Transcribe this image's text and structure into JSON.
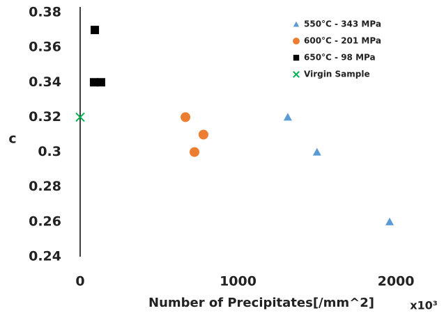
{
  "chart_data": {
    "type": "scatter",
    "xlabel": "Number of Precipitates[/mm^2]",
    "ylabel": "c",
    "annotation": "x10³",
    "xlim": [
      0,
      2300
    ],
    "xticks": [
      0,
      1000,
      2000
    ],
    "ylim": [
      0.24,
      0.38
    ],
    "yticks": [
      0.38,
      0.36,
      0.34,
      0.32,
      0.3,
      0.28,
      0.26,
      0.24
    ],
    "legend": "top-right",
    "series": [
      {
        "name": "550°C - 343 MPa",
        "color": "#5b9bd5",
        "marker": "triangle",
        "x": [
          1315,
          1500,
          1960
        ],
        "values": [
          0.32,
          0.3,
          0.26
        ]
      },
      {
        "name": "600°C - 201 MPa",
        "color": "#ed7d31",
        "marker": "circle",
        "x": [
          667,
          781,
          724
        ],
        "values": [
          0.32,
          0.31,
          0.3
        ]
      },
      {
        "name": "650°C - 98 MPa",
        "color": "#000000",
        "marker": "square",
        "x": [
          93,
          88,
          132
        ],
        "values": [
          0.37,
          0.34,
          0.34
        ]
      },
      {
        "name": "Virgin Sample",
        "color": "#00b050",
        "marker": "x",
        "x": [
          0
        ],
        "values": [
          0.32
        ]
      }
    ]
  }
}
